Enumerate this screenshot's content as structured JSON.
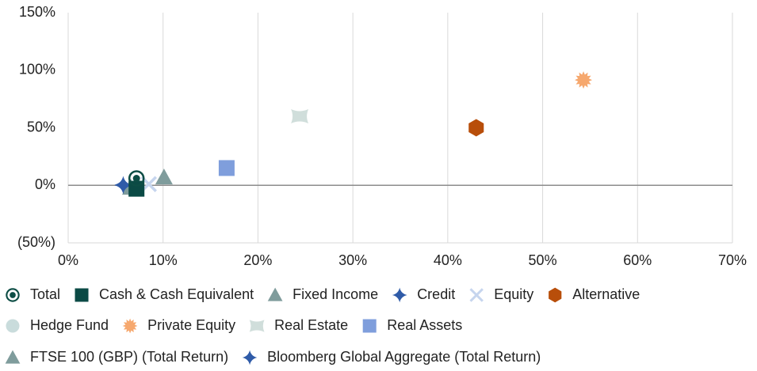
{
  "chart_data": {
    "type": "scatter",
    "xlim": [
      0,
      70
    ],
    "xticks": [
      {
        "value": 0,
        "label": "0%"
      },
      {
        "value": 10,
        "label": "10%"
      },
      {
        "value": 20,
        "label": "20%"
      },
      {
        "value": 30,
        "label": "30%"
      },
      {
        "value": 40,
        "label": "40%"
      },
      {
        "value": 50,
        "label": "50%"
      },
      {
        "value": 60,
        "label": "60%"
      },
      {
        "value": 70,
        "label": "70%"
      }
    ],
    "ylim": [
      -50,
      150
    ],
    "yticks": [
      {
        "value": -50,
        "label": "(50%)"
      },
      {
        "value": 0,
        "label": "0%"
      },
      {
        "value": 50,
        "label": "50%"
      },
      {
        "value": 100,
        "label": "100%"
      },
      {
        "value": 150,
        "label": "150%"
      }
    ],
    "grid": true,
    "legend": "bottom",
    "series": [
      {
        "name": "Total",
        "color": "#0d4d45",
        "marker": "ring",
        "x": [
          7.2
        ],
        "y": [
          6
        ]
      },
      {
        "name": "Cash & Cash Equivalent",
        "color": "#0b4a45",
        "marker": "square",
        "x": [
          7.2
        ],
        "y": [
          -3
        ]
      },
      {
        "name": "Fixed Income",
        "color": "#7f9c9c",
        "marker": "triangle",
        "x": [
          10.1
        ],
        "y": [
          7
        ]
      },
      {
        "name": "Credit",
        "color": "#2f5ba8",
        "marker": "star4",
        "x": [
          5.8
        ],
        "y": [
          0
        ]
      },
      {
        "name": "Equity",
        "color": "#c6d5ee",
        "marker": "cross",
        "x": [
          8.5
        ],
        "y": [
          1
        ]
      },
      {
        "name": "Alternative",
        "color": "#b84e0a",
        "marker": "hexagon",
        "x": [
          43
        ],
        "y": [
          50
        ]
      },
      {
        "name": "Hedge Fund",
        "color": "#c9dcdc",
        "marker": "circle",
        "x": [
          7.2
        ],
        "y": [
          -2
        ]
      },
      {
        "name": "Private Equity",
        "color": "#f6a86e",
        "marker": "burst",
        "x": [
          54.3
        ],
        "y": [
          91.5
        ]
      },
      {
        "name": "Real Estate",
        "color": "#d0dedb",
        "marker": "bow",
        "x": [
          24.4
        ],
        "y": [
          60
        ]
      },
      {
        "name": "Real Assets",
        "color": "#7f9edc",
        "marker": "square",
        "x": [
          16.7
        ],
        "y": [
          15
        ]
      },
      {
        "name": "FTSE 100 (GBP) (Total Return)",
        "color": "#7f9c9c",
        "marker": "triangle",
        "x": [
          6.6
        ],
        "y": [
          -2
        ]
      },
      {
        "name": "Bloomberg Global Aggregate (Total Return)",
        "color": "#2f5ba8",
        "marker": "star4",
        "x": [
          5.8
        ],
        "y": [
          0.5
        ]
      }
    ]
  }
}
